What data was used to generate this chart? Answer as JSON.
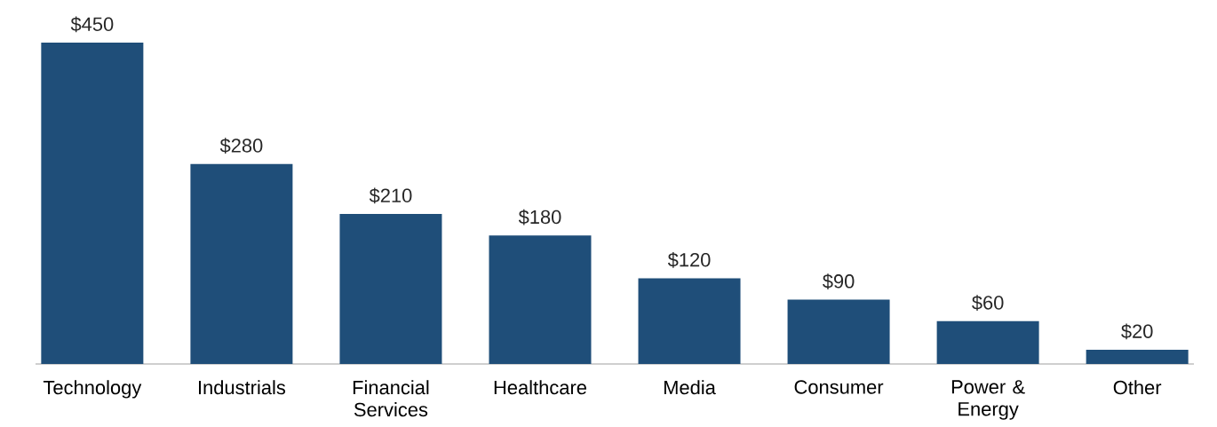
{
  "chart_data": {
    "type": "bar",
    "categories": [
      "Technology",
      "Industrials",
      "Financial Services",
      "Healthcare",
      "Media",
      "Consumer",
      "Power & Energy",
      "Other"
    ],
    "values": [
      450,
      280,
      210,
      180,
      120,
      90,
      60,
      20
    ],
    "value_labels": [
      "$450",
      "$280",
      "$210",
      "$180",
      "$120",
      "$90",
      "$60",
      "$20"
    ],
    "color": "#1f4e79"
  }
}
